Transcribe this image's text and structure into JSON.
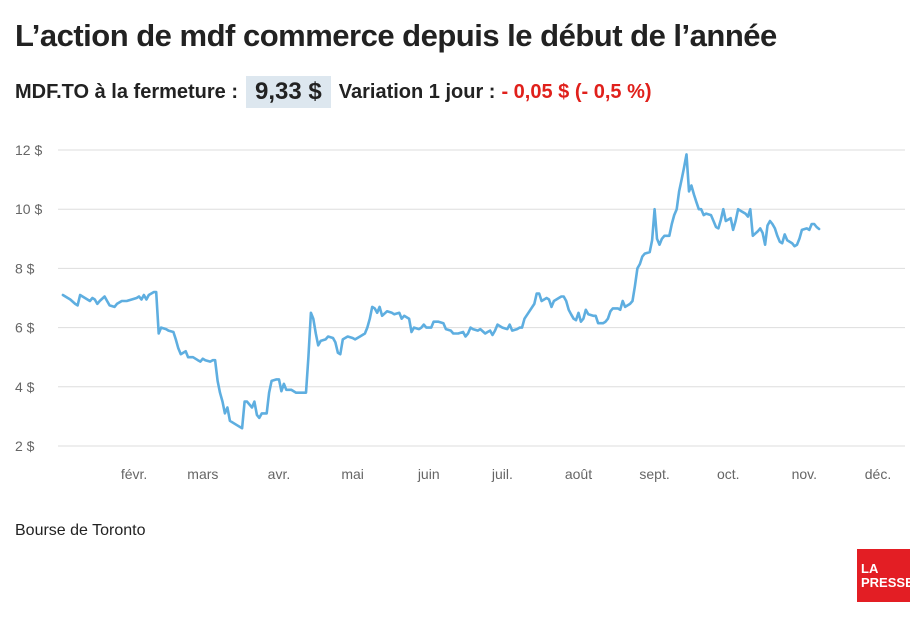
{
  "title": "L’action de mdf commerce depuis le début de l’année",
  "subtitle": {
    "label": "MDF.TO à la fermeture :",
    "price": "9,33 $",
    "variation_label": "Variation 1 jour :",
    "variation_value": "- 0,05 $ (- 0,5 %)"
  },
  "source": "Bourse de Toronto",
  "logo": {
    "line1": "LA",
    "line2": "PRESSE"
  },
  "colors": {
    "line": "#5eaee0",
    "negative": "#e0201b",
    "price_bg": "#dde7ef",
    "logo_bg": "#e31e24",
    "grid": "#dddddd"
  },
  "chart_data": {
    "type": "line",
    "title": "L’action de mdf commerce depuis le début de l’année",
    "xlabel": "",
    "ylabel": "",
    "ylim": [
      2,
      12
    ],
    "xlim": [
      0,
      345
    ],
    "y_ticks": [
      12,
      10,
      8,
      6,
      4,
      2
    ],
    "y_tick_labels": [
      "12 $",
      "10 $",
      "8 $",
      "6 $",
      "4 $",
      "2 $"
    ],
    "x_ticks": [
      {
        "label": "févr.",
        "day": 31
      },
      {
        "label": "mars",
        "day": 59
      },
      {
        "label": "avr.",
        "day": 90
      },
      {
        "label": "mai",
        "day": 120
      },
      {
        "label": "juin",
        "day": 151
      },
      {
        "label": "juil.",
        "day": 181
      },
      {
        "label": "août",
        "day": 212
      },
      {
        "label": "sept.",
        "day": 243
      },
      {
        "label": "oct.",
        "day": 273
      },
      {
        "label": "nov.",
        "day": 304
      },
      {
        "label": "déc.",
        "day": 334
      }
    ],
    "grid": true,
    "series": [
      {
        "values": [
          [
            2,
            7.1
          ],
          [
            4,
            7.0
          ],
          [
            5,
            6.95
          ],
          [
            7,
            6.8
          ],
          [
            8,
            6.75
          ],
          [
            9,
            7.1
          ],
          [
            11,
            7.0
          ],
          [
            13,
            6.9
          ],
          [
            14,
            7.0
          ],
          [
            15,
            6.95
          ],
          [
            16,
            6.8
          ],
          [
            17,
            6.9
          ],
          [
            19,
            7.05
          ],
          [
            20,
            6.9
          ],
          [
            21,
            6.75
          ],
          [
            23,
            6.7
          ],
          [
            24,
            6.8
          ],
          [
            26,
            6.9
          ],
          [
            28,
            6.9
          ],
          [
            30,
            6.95
          ],
          [
            32,
            7.0
          ],
          [
            33,
            7.05
          ],
          [
            34,
            6.95
          ],
          [
            35,
            7.1
          ],
          [
            36,
            6.95
          ],
          [
            37,
            7.1
          ],
          [
            39,
            7.2
          ],
          [
            40,
            7.2
          ],
          [
            41,
            5.8
          ],
          [
            42,
            6.0
          ],
          [
            44,
            5.95
          ],
          [
            45,
            5.9
          ],
          [
            47,
            5.85
          ],
          [
            48,
            5.6
          ],
          [
            49,
            5.3
          ],
          [
            50,
            5.1
          ],
          [
            52,
            5.2
          ],
          [
            53,
            5.0
          ],
          [
            55,
            5.0
          ],
          [
            57,
            4.9
          ],
          [
            58,
            4.85
          ],
          [
            59,
            4.95
          ],
          [
            60,
            4.9
          ],
          [
            62,
            4.85
          ],
          [
            63,
            4.9
          ],
          [
            64,
            4.9
          ],
          [
            65,
            4.2
          ],
          [
            66,
            3.8
          ],
          [
            67,
            3.5
          ],
          [
            68,
            3.1
          ],
          [
            69,
            3.3
          ],
          [
            70,
            2.85
          ],
          [
            71,
            2.8
          ],
          [
            73,
            2.7
          ],
          [
            75,
            2.6
          ],
          [
            76,
            3.5
          ],
          [
            77,
            3.5
          ],
          [
            79,
            3.3
          ],
          [
            80,
            3.5
          ],
          [
            81,
            3.05
          ],
          [
            82,
            2.95
          ],
          [
            83,
            3.1
          ],
          [
            85,
            3.1
          ],
          [
            86,
            3.8
          ],
          [
            87,
            4.2
          ],
          [
            89,
            4.25
          ],
          [
            90,
            4.25
          ],
          [
            91,
            3.85
          ],
          [
            92,
            4.1
          ],
          [
            93,
            3.9
          ],
          [
            95,
            3.9
          ],
          [
            97,
            3.8
          ],
          [
            99,
            3.8
          ],
          [
            101,
            3.8
          ],
          [
            102,
            5.0
          ],
          [
            103,
            6.5
          ],
          [
            104,
            6.3
          ],
          [
            105,
            5.8
          ],
          [
            106,
            5.4
          ],
          [
            107,
            5.55
          ],
          [
            109,
            5.6
          ],
          [
            110,
            5.7
          ],
          [
            112,
            5.65
          ],
          [
            113,
            5.5
          ],
          [
            114,
            5.15
          ],
          [
            115,
            5.1
          ],
          [
            116,
            5.6
          ],
          [
            118,
            5.7
          ],
          [
            120,
            5.65
          ],
          [
            121,
            5.6
          ],
          [
            123,
            5.7
          ],
          [
            125,
            5.8
          ],
          [
            126,
            6.0
          ],
          [
            127,
            6.3
          ],
          [
            128,
            6.7
          ],
          [
            129,
            6.65
          ],
          [
            130,
            6.5
          ],
          [
            131,
            6.7
          ],
          [
            132,
            6.4
          ],
          [
            134,
            6.55
          ],
          [
            136,
            6.5
          ],
          [
            137,
            6.45
          ],
          [
            139,
            6.5
          ],
          [
            140,
            6.3
          ],
          [
            141,
            6.4
          ],
          [
            142,
            6.35
          ],
          [
            143,
            6.3
          ],
          [
            144,
            5.85
          ],
          [
            145,
            6.0
          ],
          [
            147,
            5.95
          ],
          [
            148,
            6.0
          ],
          [
            149,
            6.1
          ],
          [
            150,
            6.0
          ],
          [
            152,
            6.0
          ],
          [
            153,
            6.2
          ],
          [
            155,
            6.2
          ],
          [
            157,
            6.15
          ],
          [
            158,
            5.95
          ],
          [
            160,
            5.9
          ],
          [
            161,
            5.8
          ],
          [
            163,
            5.8
          ],
          [
            165,
            5.85
          ],
          [
            166,
            5.7
          ],
          [
            167,
            5.8
          ],
          [
            168,
            6.0
          ],
          [
            169,
            5.95
          ],
          [
            171,
            5.9
          ],
          [
            172,
            5.95
          ],
          [
            174,
            5.8
          ],
          [
            175,
            5.85
          ],
          [
            176,
            5.9
          ],
          [
            177,
            5.75
          ],
          [
            178,
            5.9
          ],
          [
            179,
            6.1
          ],
          [
            180,
            6.05
          ],
          [
            181,
            6.0
          ],
          [
            183,
            5.95
          ],
          [
            184,
            6.1
          ],
          [
            185,
            5.9
          ],
          [
            187,
            5.95
          ],
          [
            188,
            6.0
          ],
          [
            189,
            6.0
          ],
          [
            190,
            6.3
          ],
          [
            192,
            6.55
          ],
          [
            194,
            6.8
          ],
          [
            195,
            7.15
          ],
          [
            196,
            7.15
          ],
          [
            197,
            6.9
          ],
          [
            199,
            7.0
          ],
          [
            200,
            6.95
          ],
          [
            201,
            6.7
          ],
          [
            202,
            6.9
          ],
          [
            204,
            7.0
          ],
          [
            205,
            7.05
          ],
          [
            206,
            7.05
          ],
          [
            207,
            6.9
          ],
          [
            208,
            6.6
          ],
          [
            209,
            6.45
          ],
          [
            210,
            6.3
          ],
          [
            211,
            6.25
          ],
          [
            212,
            6.5
          ],
          [
            213,
            6.2
          ],
          [
            214,
            6.3
          ],
          [
            215,
            6.6
          ],
          [
            216,
            6.45
          ],
          [
            218,
            6.4
          ],
          [
            219,
            6.4
          ],
          [
            220,
            6.15
          ],
          [
            222,
            6.15
          ],
          [
            223,
            6.2
          ],
          [
            224,
            6.3
          ],
          [
            225,
            6.55
          ],
          [
            226,
            6.65
          ],
          [
            228,
            6.65
          ],
          [
            229,
            6.6
          ],
          [
            230,
            6.9
          ],
          [
            231,
            6.7
          ],
          [
            233,
            6.8
          ],
          [
            234,
            6.9
          ],
          [
            235,
            7.4
          ],
          [
            236,
            8.0
          ],
          [
            237,
            8.15
          ],
          [
            238,
            8.4
          ],
          [
            239,
            8.5
          ],
          [
            241,
            8.55
          ],
          [
            242,
            8.95
          ],
          [
            243,
            10.0
          ],
          [
            244,
            9.0
          ],
          [
            245,
            8.8
          ],
          [
            246,
            9.0
          ],
          [
            247,
            9.1
          ],
          [
            249,
            9.1
          ],
          [
            250,
            9.5
          ],
          [
            251,
            9.8
          ],
          [
            252,
            10.0
          ],
          [
            253,
            10.6
          ],
          [
            254,
            11.0
          ],
          [
            255,
            11.4
          ],
          [
            256,
            11.85
          ],
          [
            257,
            10.6
          ],
          [
            258,
            10.8
          ],
          [
            259,
            10.5
          ],
          [
            260,
            10.25
          ],
          [
            261,
            10.0
          ],
          [
            262,
            10.0
          ],
          [
            263,
            9.8
          ],
          [
            264,
            9.85
          ],
          [
            266,
            9.8
          ],
          [
            267,
            9.6
          ],
          [
            268,
            9.4
          ],
          [
            269,
            9.35
          ],
          [
            270,
            9.65
          ],
          [
            271,
            10.0
          ],
          [
            272,
            9.6
          ],
          [
            274,
            9.7
          ],
          [
            275,
            9.3
          ],
          [
            276,
            9.6
          ],
          [
            277,
            10.0
          ],
          [
            278,
            9.95
          ],
          [
            280,
            9.85
          ],
          [
            281,
            9.75
          ],
          [
            282,
            10.0
          ],
          [
            283,
            9.1
          ],
          [
            285,
            9.25
          ],
          [
            286,
            9.35
          ],
          [
            287,
            9.2
          ],
          [
            288,
            8.8
          ],
          [
            289,
            9.45
          ],
          [
            290,
            9.6
          ],
          [
            291,
            9.5
          ],
          [
            292,
            9.35
          ],
          [
            293,
            9.1
          ],
          [
            294,
            8.9
          ],
          [
            295,
            8.85
          ],
          [
            296,
            9.15
          ],
          [
            297,
            8.95
          ],
          [
            299,
            8.85
          ],
          [
            300,
            8.75
          ],
          [
            301,
            8.8
          ],
          [
            302,
            9.0
          ],
          [
            303,
            9.3
          ],
          [
            305,
            9.35
          ],
          [
            306,
            9.3
          ],
          [
            307,
            9.5
          ],
          [
            308,
            9.5
          ],
          [
            309,
            9.4
          ],
          [
            310,
            9.33
          ]
        ]
      }
    ]
  }
}
